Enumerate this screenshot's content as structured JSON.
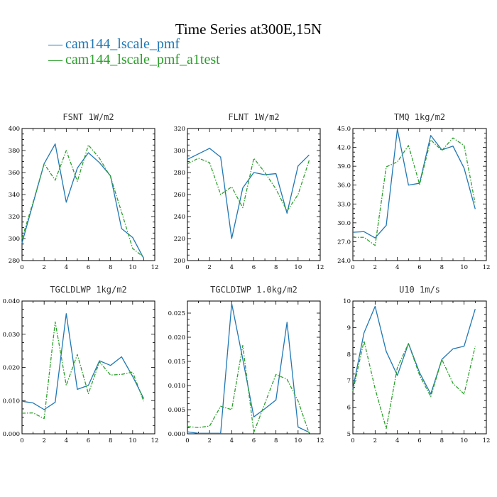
{
  "figure": {
    "title": "Time Series at300E,15N",
    "colors": {
      "cam144_lscale_pmf": "#1f77b4",
      "cam144_lscale_pmf_a1test": "#2ca02c"
    },
    "legend": [
      {
        "name": "cam144_lscale_pmf",
        "marker": "—",
        "color": "#1f77b4",
        "dash": "solid"
      },
      {
        "name": "cam144_lscale_pmf_a1test",
        "marker": "—",
        "color": "#2ca02c",
        "dash": "dashed"
      }
    ]
  },
  "chart_data": [
    {
      "type": "line",
      "title": "FSNT  1W/m2",
      "x": [
        0,
        1,
        2,
        3,
        4,
        5,
        6,
        7,
        8,
        9,
        10,
        11
      ],
      "xlim": [
        0,
        12
      ],
      "xticks": [
        "0",
        "2",
        "4",
        "6",
        "8",
        "10",
        "12"
      ],
      "ylim": [
        280,
        400
      ],
      "yticks": [
        "280",
        "300",
        "320",
        "340",
        "360",
        "380",
        "400"
      ],
      "series": [
        {
          "name": "cam144_lscale_pmf",
          "values": [
            296,
            332,
            368,
            386,
            333,
            364,
            378,
            369,
            357,
            309,
            301,
            282
          ]
        },
        {
          "name": "cam144_lscale_pmf_a1test",
          "values": [
            300,
            333,
            368,
            353,
            380,
            352,
            385,
            373,
            356,
            324,
            291,
            283
          ]
        }
      ]
    },
    {
      "type": "line",
      "title": "FLNT  1W/m2",
      "x": [
        0,
        1,
        2,
        3,
        4,
        5,
        6,
        7,
        8,
        9,
        10,
        11
      ],
      "xlim": [
        0,
        12
      ],
      "xticks": [
        "0",
        "2",
        "4",
        "6",
        "8",
        "10",
        "12"
      ],
      "ylim": [
        200,
        320
      ],
      "yticks": [
        "200",
        "220",
        "240",
        "260",
        "280",
        "300",
        "320"
      ],
      "series": [
        {
          "name": "cam144_lscale_pmf",
          "values": [
            292,
            297,
            302,
            294,
            220,
            266,
            280,
            278,
            279,
            243,
            286,
            296
          ]
        },
        {
          "name": "cam144_lscale_pmf_a1test",
          "values": [
            288,
            293,
            289,
            260,
            267,
            248,
            293,
            280,
            265,
            245,
            260,
            291
          ]
        }
      ]
    },
    {
      "type": "line",
      "title": "TMQ  1kg/m2",
      "x": [
        0,
        1,
        2,
        3,
        4,
        5,
        6,
        7,
        8,
        9,
        10,
        11
      ],
      "xlim": [
        0,
        12
      ],
      "xticks": [
        "0",
        "2",
        "4",
        "6",
        "8",
        "10",
        "12"
      ],
      "ylim": [
        24.0,
        45.0
      ],
      "yticks": [
        "24.0",
        "27.0",
        "30.0",
        "33.0",
        "36.0",
        "39.0",
        "42.0",
        "45.0"
      ],
      "series": [
        {
          "name": "cam144_lscale_pmf",
          "values": [
            28.5,
            28.6,
            27.6,
            29.6,
            44.9,
            36.0,
            36.3,
            43.9,
            41.6,
            42.2,
            38.7,
            32.2
          ]
        },
        {
          "name": "cam144_lscale_pmf_a1test",
          "values": [
            27.7,
            27.7,
            26.4,
            38.9,
            39.7,
            42.3,
            36.1,
            43.2,
            41.5,
            43.5,
            42.3,
            33.0
          ]
        }
      ]
    },
    {
      "type": "line",
      "title": "TGCLDLWP  1kg/m2",
      "x": [
        0,
        1,
        2,
        3,
        4,
        5,
        6,
        7,
        8,
        9,
        10,
        11
      ],
      "xlim": [
        0,
        12
      ],
      "xticks": [
        "0",
        "2",
        "4",
        "6",
        "8",
        "10",
        "12"
      ],
      "ylim": [
        0.0,
        0.04
      ],
      "yticks": [
        "0.000",
        "0.010",
        "0.020",
        "0.030",
        "0.040"
      ],
      "series": [
        {
          "name": "cam144_lscale_pmf",
          "values": [
            0.0098,
            0.0093,
            0.0073,
            0.0095,
            0.0362,
            0.0134,
            0.0146,
            0.022,
            0.0206,
            0.0232,
            0.0173,
            0.0106
          ]
        },
        {
          "name": "cam144_lscale_pmf_a1test",
          "values": [
            0.0062,
            0.0063,
            0.0046,
            0.0337,
            0.0146,
            0.0239,
            0.0121,
            0.0217,
            0.0177,
            0.0179,
            0.0186,
            0.0098
          ]
        }
      ]
    },
    {
      "type": "line",
      "title": "TGCLDIWP  1.0kg/m2",
      "x": [
        0,
        1,
        2,
        3,
        4,
        5,
        6,
        7,
        8,
        9,
        10,
        11
      ],
      "xlim": [
        0,
        12
      ],
      "xticks": [
        "0",
        "2",
        "4",
        "6",
        "8",
        "10",
        "12"
      ],
      "ylim": [
        0.0,
        0.0275
      ],
      "yticks": [
        "0.000",
        "0.005",
        "0.010",
        "0.015",
        "0.020",
        "0.025"
      ],
      "series": [
        {
          "name": "cam144_lscale_pmf",
          "values": [
            0.0004,
            0.0001,
            0.0001,
            0.0001,
            0.027,
            0.0155,
            0.0035,
            0.0052,
            0.007,
            0.0231,
            0.0014,
            0.0003
          ]
        },
        {
          "name": "cam144_lscale_pmf_a1test",
          "values": [
            0.0015,
            0.0013,
            0.0016,
            0.0057,
            0.005,
            0.0183,
            0.0003,
            0.0063,
            0.0123,
            0.0113,
            0.0068,
            0.0001
          ]
        }
      ]
    },
    {
      "type": "line",
      "title": "U10  1m/s",
      "x": [
        0,
        1,
        2,
        3,
        4,
        5,
        6,
        7,
        8,
        9,
        10,
        11
      ],
      "xlim": [
        0,
        12
      ],
      "xticks": [
        "0",
        "2",
        "4",
        "6",
        "8",
        "10",
        "12"
      ],
      "ylim": [
        5,
        10
      ],
      "yticks": [
        "5",
        "6",
        "7",
        "8",
        "9",
        "10"
      ],
      "series": [
        {
          "name": "cam144_lscale_pmf",
          "values": [
            6.7,
            8.8,
            9.8,
            8.1,
            7.2,
            8.4,
            7.3,
            6.5,
            7.8,
            8.2,
            8.3,
            9.7
          ]
        },
        {
          "name": "cam144_lscale_pmf_a1test",
          "values": [
            6.6,
            8.5,
            6.7,
            5.2,
            7.5,
            8.4,
            7.2,
            6.4,
            7.8,
            6.9,
            6.5,
            8.3
          ]
        }
      ]
    }
  ]
}
